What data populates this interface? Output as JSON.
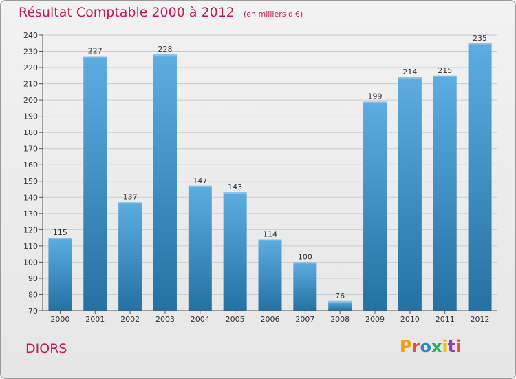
{
  "header": {
    "title": "Résultat Comptable 2000 à 2012",
    "subtitle": "(en milliers d'€)"
  },
  "footer": {
    "place": "DIORS",
    "logo_letters": [
      "P",
      "r",
      "o",
      "x",
      "i",
      "t",
      "i"
    ],
    "logo_colors": [
      "#f39c12",
      "#e74c3c",
      "#2e86c1",
      "#27ae60",
      "#f1c40f",
      "#8e44ad",
      "#e74c3c"
    ]
  },
  "colors": {
    "accent": "#c2185b",
    "bar_light": "#5dade2",
    "bar_dark": "#2874a6",
    "grid": "#cccccc"
  },
  "chart_data": {
    "type": "bar",
    "title": "Résultat Comptable 2000 à 2012",
    "subtitle": "(en milliers d'€)",
    "xlabel": "",
    "ylabel": "",
    "categories": [
      "2000",
      "2001",
      "2002",
      "2003",
      "2004",
      "2005",
      "2006",
      "2007",
      "2008",
      "2009",
      "2010",
      "2011",
      "2012"
    ],
    "values": [
      115,
      227,
      137,
      228,
      147,
      143,
      114,
      100,
      76,
      199,
      214,
      215,
      235
    ],
    "ylim": [
      70,
      240
    ],
    "yticks": [
      70,
      80,
      90,
      100,
      110,
      120,
      130,
      140,
      150,
      160,
      170,
      180,
      190,
      200,
      210,
      220,
      230,
      240
    ],
    "grid": true,
    "legend": "none"
  }
}
